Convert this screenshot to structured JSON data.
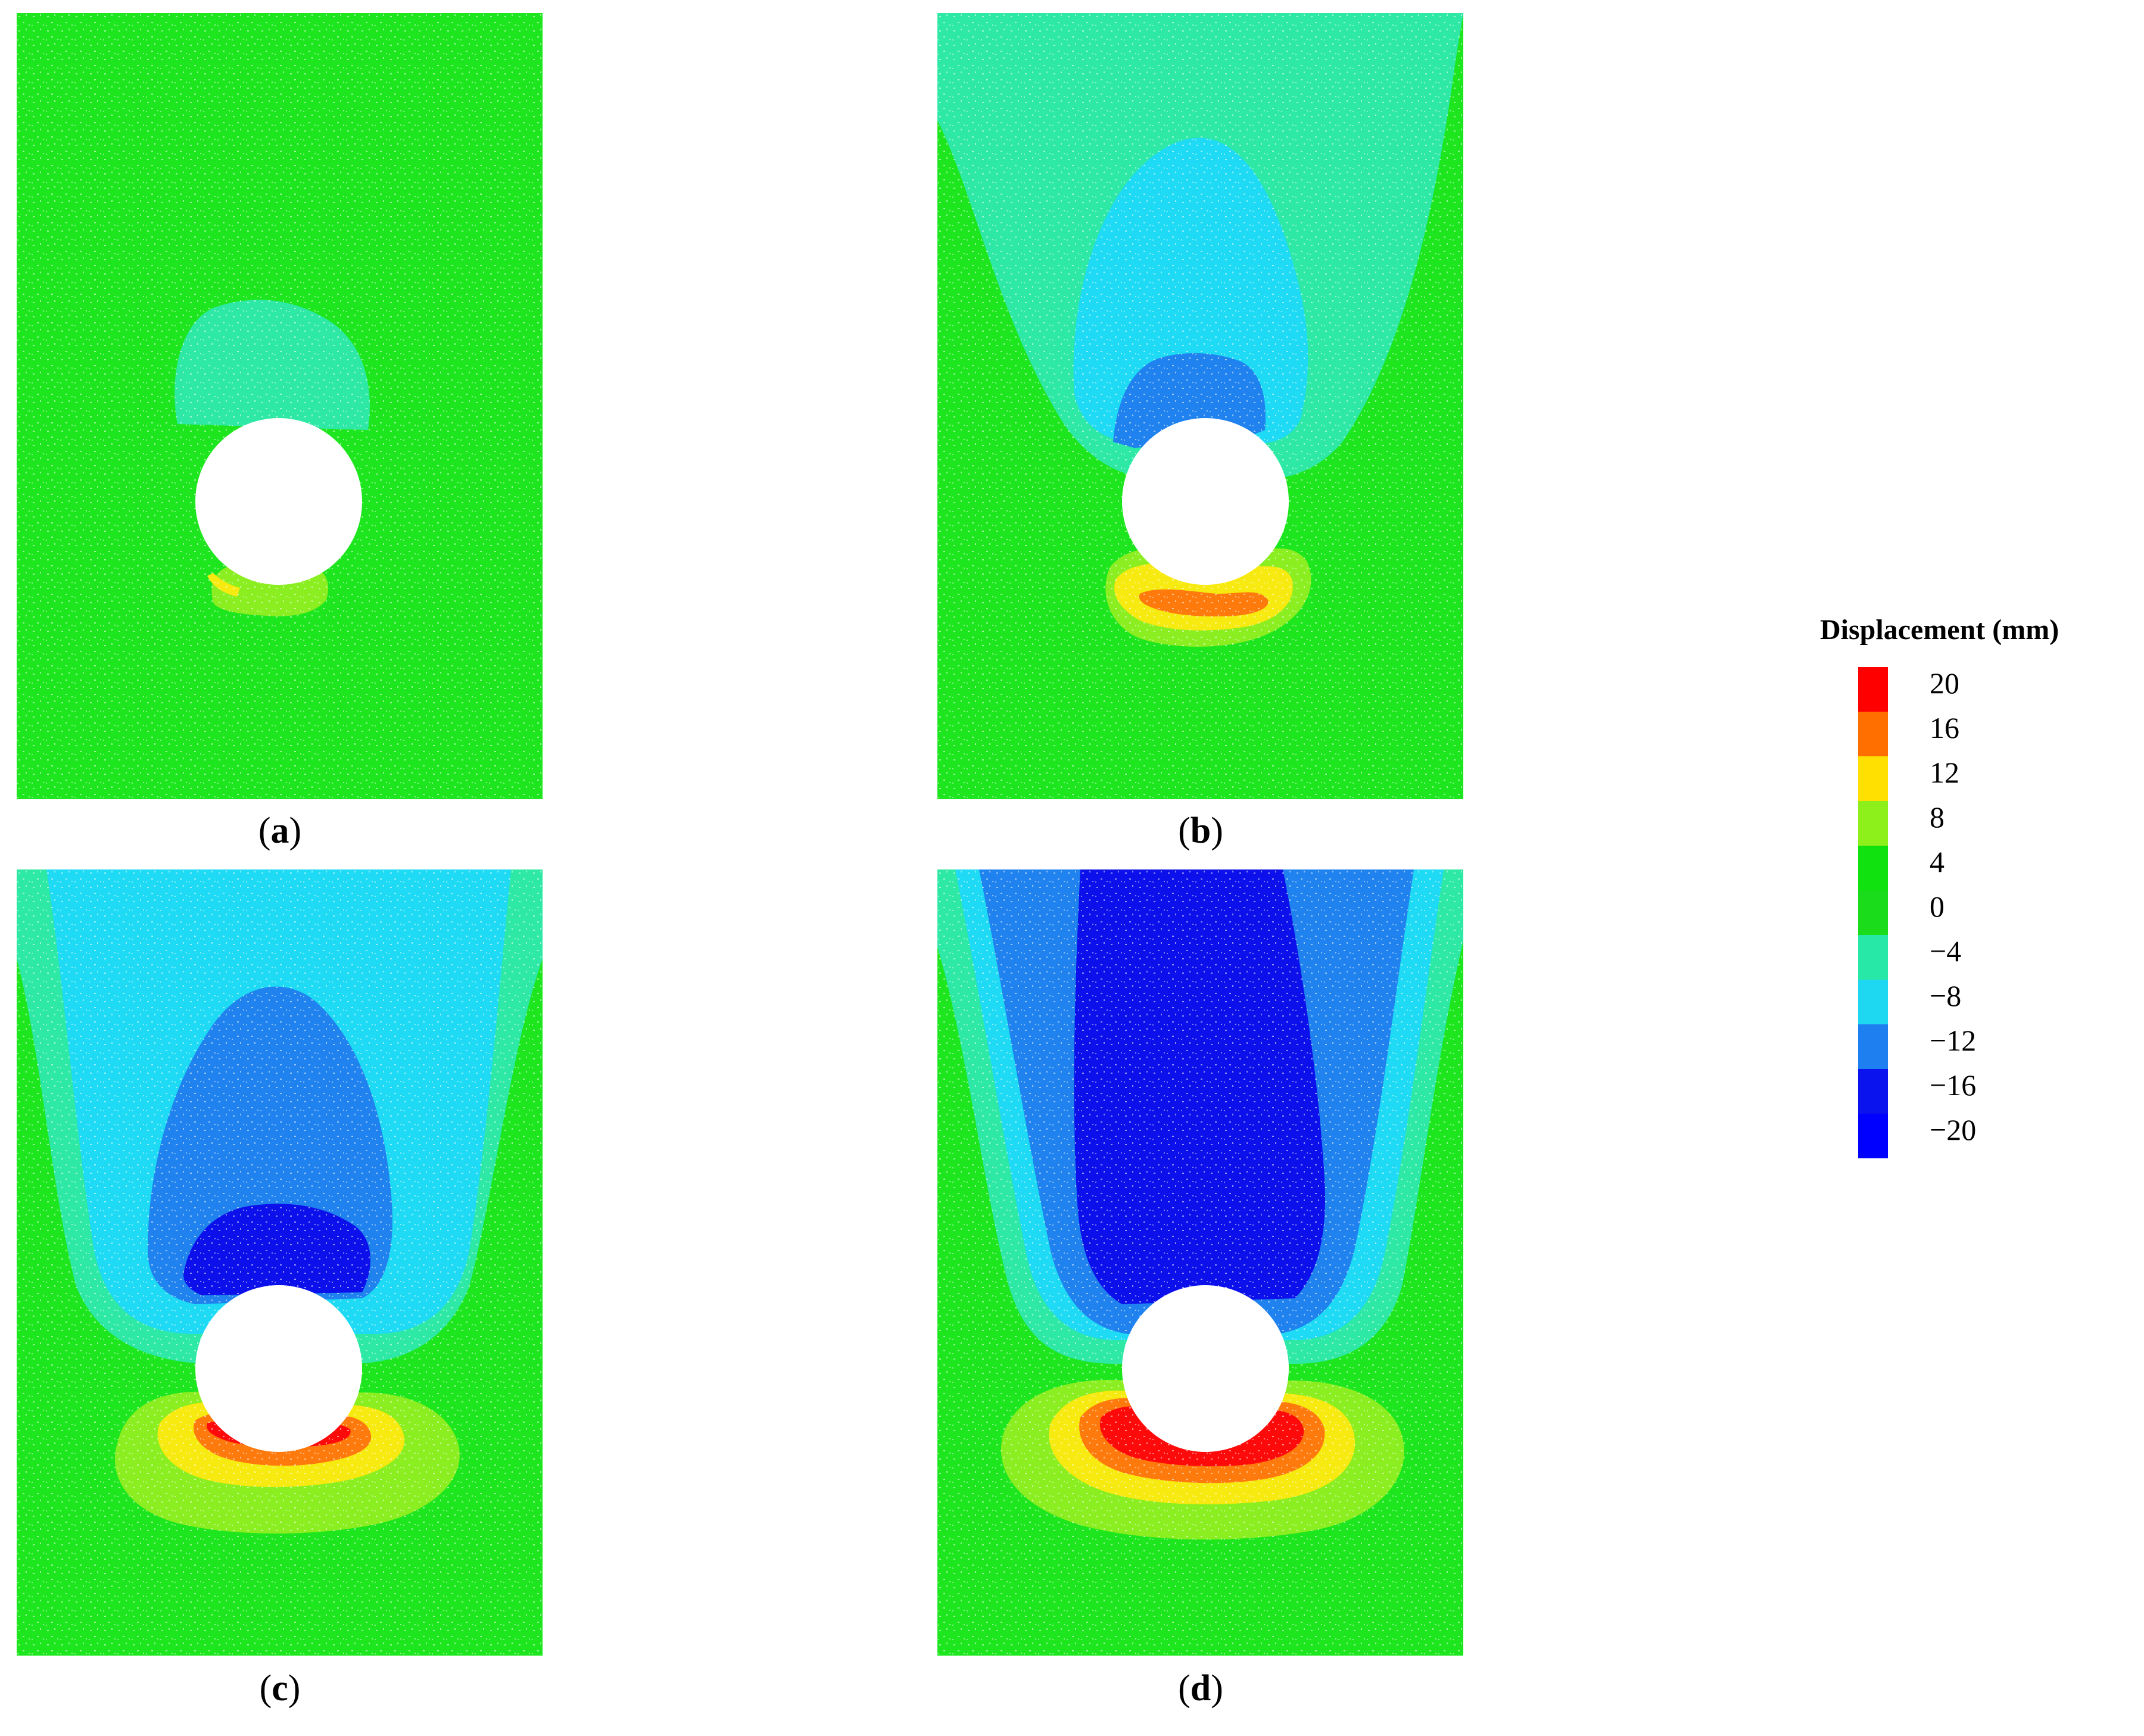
{
  "panels": [
    {
      "id": "a",
      "label": "a",
      "level": 1
    },
    {
      "id": "b",
      "label": "b",
      "level": 2
    },
    {
      "id": "c",
      "label": "c",
      "level": 3
    },
    {
      "id": "d",
      "label": "d",
      "level": 4
    }
  ],
  "legend": {
    "title": "Displacement (mm)",
    "labels": [
      "20",
      "16",
      "12",
      "8",
      "4",
      "0",
      "−4",
      "−8",
      "−12",
      "−16",
      "−20"
    ],
    "colors": [
      "#ff0000",
      "#ff6f00",
      "#ffe000",
      "#8ef01a",
      "#0fe20f",
      "#1bdc1b",
      "#28e8a8",
      "#1ed8f2",
      "#1e80f0",
      "#0a12ee",
      "#0000ff"
    ]
  },
  "palette": {
    "green": "#1ee61e",
    "teal": "#2ee8a6",
    "cyan": "#1fdaf4",
    "blue": "#1f82ee",
    "navy": "#0c10ea",
    "lime": "#8aee20",
    "yellow": "#f6ea10",
    "orange": "#ff7a0c",
    "red": "#ff0a0a"
  }
}
